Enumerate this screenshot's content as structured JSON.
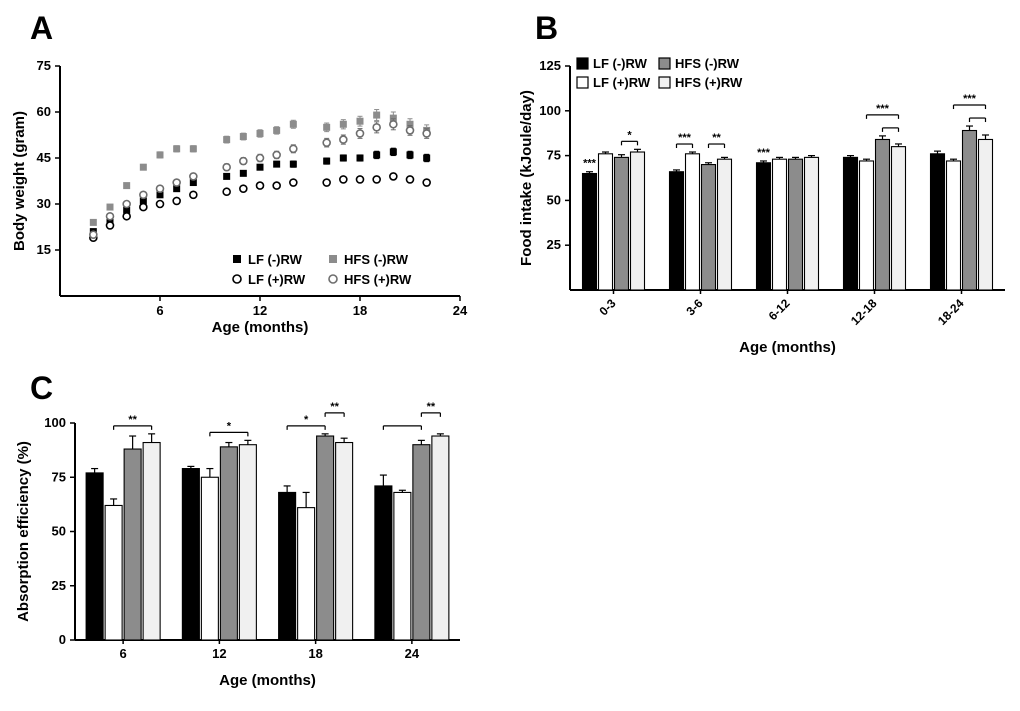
{
  "panels": {
    "a": {
      "letter": "A"
    },
    "b": {
      "letter": "B"
    },
    "c": {
      "letter": "C"
    }
  },
  "colors": {
    "black": "#000000",
    "gray": "#8c8c8c",
    "light": "#f0f0f0",
    "white": "#ffffff"
  },
  "chart_data": [
    {
      "id": "body-weight",
      "panel": "A",
      "type": "scatter",
      "title": "",
      "xlabel": "Age (months)",
      "ylabel": "Body weight (gram)",
      "xlim": [
        0,
        24
      ],
      "ylim": [
        0,
        75
      ],
      "xticks": [
        6,
        12,
        18,
        24
      ],
      "yticks": [
        15,
        30,
        45,
        60,
        75
      ],
      "legend_position": "bottom-right-inside",
      "x": [
        2,
        3,
        4,
        5,
        6,
        7,
        8,
        10,
        11,
        12,
        13,
        14,
        16,
        17,
        18,
        19,
        20,
        21,
        22
      ],
      "series": [
        {
          "name": "LF (-)RW",
          "marker": "square",
          "filled": true,
          "color": "#000000",
          "values": [
            21,
            24,
            28,
            31,
            33,
            35,
            37,
            39,
            40,
            42,
            43,
            43,
            44,
            45,
            45,
            46,
            47,
            46,
            45
          ],
          "err": [
            0.5,
            0.5,
            0.6,
            0.6,
            0.7,
            0.7,
            0.8,
            0.8,
            0.8,
            0.9,
            0.9,
            1,
            1,
            1,
            1,
            1.2,
            1.2,
            1.2,
            1.2
          ]
        },
        {
          "name": "LF (+)RW",
          "marker": "circle",
          "filled": false,
          "color": "#000000",
          "values": [
            19,
            23,
            26,
            29,
            30,
            31,
            33,
            34,
            35,
            36,
            36,
            37,
            37,
            38,
            38,
            38,
            39,
            38,
            37
          ],
          "err": [
            0.5,
            0.5,
            0.5,
            0.6,
            0.6,
            0.6,
            0.7,
            0.7,
            0.7,
            0.8,
            0.8,
            0.8,
            0.9,
            0.9,
            0.9,
            1,
            1,
            1,
            1
          ]
        },
        {
          "name": "HFS (-)RW",
          "marker": "square",
          "filled": true,
          "color": "#8c8c8c",
          "values": [
            24,
            29,
            36,
            42,
            46,
            48,
            48,
            51,
            52,
            53,
            54,
            56,
            55,
            56,
            57,
            59,
            58,
            56,
            54
          ],
          "err": [
            0.6,
            0.7,
            0.8,
            0.9,
            1,
            1,
            1,
            1.1,
            1.1,
            1.2,
            1.2,
            1.3,
            1.4,
            1.5,
            1.6,
            1.8,
            2,
            1.8,
            1.8
          ]
        },
        {
          "name": "HFS (+)RW",
          "marker": "circle",
          "filled": false,
          "color": "#6e6e6e",
          "values": [
            20,
            26,
            30,
            33,
            35,
            37,
            39,
            42,
            44,
            45,
            46,
            48,
            50,
            51,
            53,
            55,
            56,
            54,
            53
          ],
          "err": [
            0.5,
            0.6,
            0.7,
            0.8,
            0.9,
            1,
            1,
            1.1,
            1.1,
            1.2,
            1.2,
            1.3,
            1.4,
            1.5,
            1.6,
            1.8,
            1.8,
            1.6,
            1.6
          ]
        }
      ]
    },
    {
      "id": "food-intake",
      "panel": "B",
      "type": "bar",
      "title": "",
      "xlabel": "Age (months)",
      "ylabel": "Food intake (kJoule/day)",
      "ylim": [
        0,
        125
      ],
      "yticks": [
        25,
        50,
        75,
        100,
        125
      ],
      "categories": [
        "0-3",
        "3-6",
        "6-12",
        "12-18",
        "18-24"
      ],
      "legend_position": "top-left-inside",
      "series": [
        {
          "name": "LF (-)RW",
          "fill": "#000000",
          "values": [
            65,
            66,
            71,
            74,
            76
          ],
          "err": [
            1,
            1,
            1,
            1,
            1.5
          ]
        },
        {
          "name": "LF (+)RW",
          "fill": "#ffffff",
          "values": [
            76,
            76,
            73,
            72,
            72
          ],
          "err": [
            1,
            1,
            1,
            1,
            1
          ]
        },
        {
          "name": "HFS (-)RW",
          "fill": "#8c8c8c",
          "values": [
            74,
            70,
            73,
            84,
            89
          ],
          "err": [
            1.5,
            1,
            1,
            2,
            2.5
          ]
        },
        {
          "name": "HFS (+)RW",
          "fill": "#f0f0f0",
          "values": [
            77,
            73,
            74,
            80,
            84
          ],
          "err": [
            1.5,
            1,
            1,
            1.5,
            2.5
          ]
        }
      ],
      "annotations": [
        {
          "group": 0,
          "type": "star",
          "bar": 0,
          "label": "***"
        },
        {
          "group": 0,
          "type": "bracket",
          "bars": [
            2,
            3
          ],
          "label": "*",
          "level": 1
        },
        {
          "group": 1,
          "type": "bracket",
          "bars": [
            0,
            1
          ],
          "label": "***",
          "level": 1
        },
        {
          "group": 1,
          "type": "bracket",
          "bars": [
            2,
            3
          ],
          "label": "**",
          "level": 1
        },
        {
          "group": 2,
          "type": "star",
          "bar": 0,
          "label": "***"
        },
        {
          "group": 3,
          "type": "bracket",
          "bars": [
            2,
            3
          ],
          "label": "",
          "level": 1
        },
        {
          "group": 3,
          "type": "bracket",
          "bars": [
            1,
            3
          ],
          "label": "***",
          "level": 2
        },
        {
          "group": 4,
          "type": "bracket",
          "bars": [
            2,
            3
          ],
          "label": "",
          "level": 1
        },
        {
          "group": 4,
          "type": "bracket",
          "bars": [
            1,
            3
          ],
          "label": "***",
          "level": 2
        }
      ]
    },
    {
      "id": "absorption-efficiency",
      "panel": "C",
      "type": "bar",
      "title": "",
      "xlabel": "Age (months)",
      "ylabel": "Absorption efficiency (%)",
      "ylim": [
        0,
        100
      ],
      "yticks": [
        0,
        25,
        50,
        75,
        100
      ],
      "categories": [
        "6",
        "12",
        "18",
        "24"
      ],
      "legend_position": "none",
      "series": [
        {
          "name": "LF (-)RW",
          "fill": "#000000",
          "values": [
            77,
            79,
            68,
            71
          ],
          "err": [
            2,
            1,
            3,
            5
          ]
        },
        {
          "name": "LF (+)RW",
          "fill": "#ffffff",
          "values": [
            62,
            75,
            61,
            68
          ],
          "err": [
            3,
            4,
            7,
            1
          ]
        },
        {
          "name": "HFS (-)RW",
          "fill": "#8c8c8c",
          "values": [
            88,
            89,
            94,
            90
          ],
          "err": [
            6,
            2,
            1,
            2
          ]
        },
        {
          "name": "HFS (+)RW",
          "fill": "#f0f0f0",
          "values": [
            91,
            90,
            91,
            94
          ],
          "err": [
            4,
            2,
            2,
            1
          ]
        }
      ],
      "annotations": [
        {
          "group": 0,
          "type": "bracket",
          "bars": [
            1,
            3
          ],
          "label": "**",
          "level": 1
        },
        {
          "group": 1,
          "type": "bracket",
          "bars": [
            1,
            3
          ],
          "label": "*",
          "level": 1
        },
        {
          "group": 2,
          "type": "bracket",
          "bars": [
            0,
            2
          ],
          "label": "*",
          "level": 1
        },
        {
          "group": 2,
          "type": "bracket",
          "bars": [
            2,
            3
          ],
          "label": "**",
          "level": 2
        },
        {
          "group": 3,
          "type": "bracket",
          "bars": [
            0,
            2
          ],
          "label": "",
          "level": 1
        },
        {
          "group": 3,
          "type": "bracket",
          "bars": [
            2,
            3
          ],
          "label": "**",
          "level": 2
        }
      ]
    }
  ]
}
